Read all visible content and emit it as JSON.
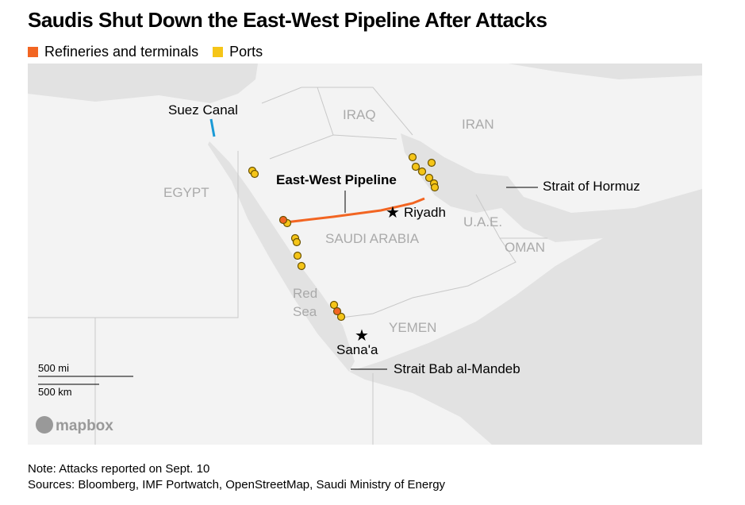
{
  "header": {
    "title": "Saudis Shut Down the East-West Pipeline After Attacks"
  },
  "legend": [
    {
      "label": "Refineries and terminals",
      "color": "#f26522"
    },
    {
      "label": "Ports",
      "color": "#f5c518"
    }
  ],
  "map": {
    "countries": [
      "EGYPT",
      "IRAQ",
      "IRAN",
      "SAUDI ARABIA",
      "U.A.E.",
      "OMAN",
      "YEMEN"
    ],
    "sea": [
      "Red",
      "Sea"
    ],
    "places": [
      "Suez Canal",
      "East-West Pipeline",
      "Riyadh",
      "Strait of Hormuz",
      "Sana'a",
      "Strait Bab al-Mandeb"
    ],
    "scale": [
      "500 mi",
      "500 km"
    ],
    "attribution": "mapbox"
  },
  "footer": {
    "note": "Note: Attacks reported on Sept. 10",
    "sources": "Sources: Bloomberg, IMF Portwatch, OpenStreetMap, Saudi Ministry of Energy"
  }
}
